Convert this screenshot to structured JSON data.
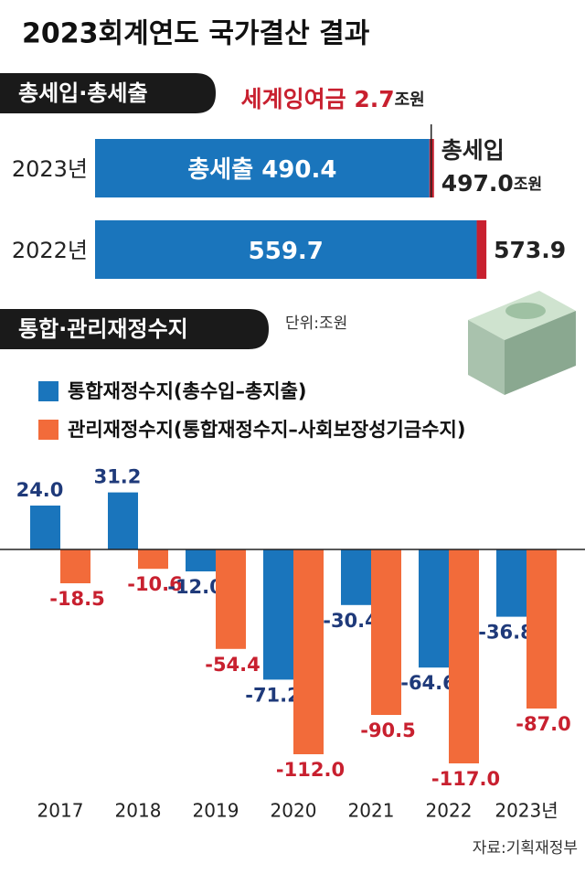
{
  "title": "2023회계연도 국가결산 결과",
  "chart_data": [
    {
      "type": "hbar",
      "title": "총세입·총세출",
      "categories": [
        "2023년",
        "2022년"
      ],
      "series": [
        {
          "name": "총세출",
          "color": "#1a75bc",
          "values": [
            490.4,
            559.7
          ]
        },
        {
          "name": "총세입",
          "color": "#c8202f",
          "values": [
            497.0,
            573.9
          ],
          "value_labels": [
            "497.0",
            "573.9"
          ]
        }
      ],
      "unit": "조원",
      "annotation": {
        "label": "세계잉여금",
        "value": 2.7,
        "unit": "조원"
      },
      "xlim": [
        0,
        600
      ]
    },
    {
      "type": "grouped_bar",
      "title": "통합·관리재정수지",
      "unit_label": "단위:조원",
      "categories": [
        "2017",
        "2018",
        "2019",
        "2020",
        "2021",
        "2022",
        "2023년"
      ],
      "series": [
        {
          "name": "통합재정수지(총수입–총지출)",
          "color": "#1a75bc",
          "label_color": "#1f3a7a",
          "values": [
            24.0,
            31.2,
            -12.0,
            -71.2,
            -30.4,
            -64.6,
            -36.8
          ],
          "value_labels": [
            "24.0",
            "31.2",
            "-12.0",
            "-71.2",
            "-30.4",
            "-64.6",
            "-36.8"
          ]
        },
        {
          "name": "관리재정수지(통합재정수지–사회보장성기금수지)",
          "color": "#f26b3a",
          "label_color": "#c8202f",
          "values": [
            -18.5,
            -10.6,
            -54.4,
            -112.0,
            -90.5,
            -117.0,
            -87.0
          ],
          "value_labels": [
            "-18.5",
            "-10.6",
            "-54.4",
            "-112.0",
            "-90.5",
            "-117.0",
            "-87.0"
          ]
        }
      ],
      "ylim": [
        -130,
        50
      ]
    }
  ],
  "source": "자료:기획재정부"
}
